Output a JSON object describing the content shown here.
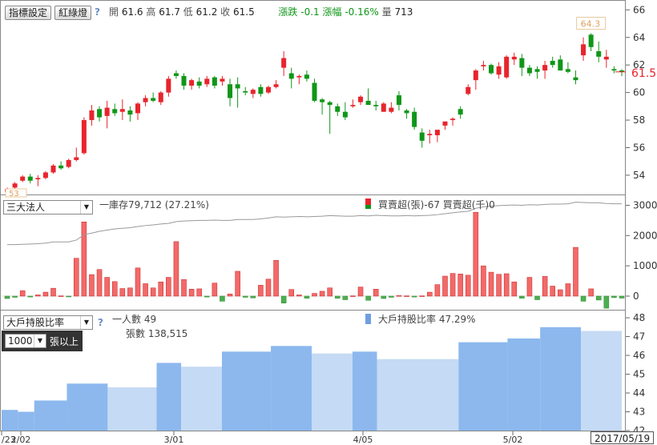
{
  "toolbar": {
    "indicator_btn": "指標設定",
    "redline_btn": "紅綠燈",
    "help": "?",
    "quote": {
      "open_label": "開",
      "open": "61.6",
      "high_label": "高",
      "high": "61.7",
      "low_label": "低",
      "low": "61.2",
      "close_label": "收",
      "close": "61.5",
      "change_label": "漲跌",
      "change": "-0.1",
      "pct_label": "漲幅",
      "pct": "-0.16%",
      "vol_label": "量",
      "vol": "713"
    }
  },
  "price_panel": {
    "y_ticks": [
      "66",
      "64",
      "62",
      "60",
      "58",
      "56",
      "54"
    ],
    "last_price_label": "61.5",
    "max_label": "64.3",
    "min_label": "53",
    "up_color": "#e8242c",
    "down_color": "#109618"
  },
  "inst_panel": {
    "select_value": "三大法人",
    "inventory_text": "一庫存79,712 (27.21%)",
    "buy_sell_text": "買賣超(張)-67 買賣超(千)0",
    "y_ticks": [
      "3000",
      "2000",
      "1000",
      "0"
    ]
  },
  "holder_panel": {
    "select_value": "大戶持股比率",
    "threshold_value": "1000",
    "threshold_unit": "張以上",
    "help": "?",
    "people_text": "一人數 49",
    "shares_text": "張數 138,515",
    "ratio_text": "大戶持股比率 47.29%",
    "y_ticks": [
      "48",
      "47",
      "46",
      "45",
      "44",
      "43",
      "42"
    ],
    "colors": {
      "dark": "#8cb8ee",
      "light": "#c5daf4"
    }
  },
  "x_axis": {
    "labels": [
      "/23",
      "2/02",
      "3/01",
      "4/05",
      "5/02"
    ],
    "current_date": "2017/05/19"
  },
  "chart_data": [
    {
      "type": "candlestick",
      "y_range": [
        52.6,
        66.6
      ],
      "ohlc": [
        [
          52.8,
          53.1,
          52.8,
          53.0
        ],
        [
          53.1,
          53.5,
          53.0,
          53.4
        ],
        [
          53.6,
          54.0,
          53.5,
          53.9
        ],
        [
          53.9,
          54.1,
          53.4,
          53.6
        ],
        [
          53.7,
          54.0,
          53.2,
          53.8
        ],
        [
          53.8,
          54.3,
          53.7,
          54.2
        ],
        [
          54.2,
          54.8,
          54.1,
          54.7
        ],
        [
          54.7,
          55.0,
          54.4,
          54.5
        ],
        [
          54.6,
          55.2,
          54.5,
          55.1
        ],
        [
          55.1,
          56.0,
          55.0,
          55.3
        ],
        [
          55.6,
          58.2,
          55.5,
          58.0
        ],
        [
          58.0,
          59.1,
          57.6,
          58.7
        ],
        [
          58.8,
          59.0,
          57.9,
          58.2
        ],
        [
          58.3,
          59.4,
          57.4,
          58.9
        ],
        [
          58.8,
          59.2,
          58.3,
          58.5
        ],
        [
          58.6,
          59.5,
          58.0,
          58.8
        ],
        [
          58.7,
          59.0,
          57.9,
          58.4
        ],
        [
          58.5,
          59.3,
          58.0,
          59.2
        ],
        [
          59.3,
          59.8,
          59.0,
          59.6
        ],
        [
          59.6,
          60.0,
          59.3,
          59.4
        ],
        [
          59.3,
          60.1,
          59.1,
          60.0
        ],
        [
          60.0,
          61.2,
          59.7,
          61.0
        ],
        [
          61.4,
          61.6,
          61.0,
          61.2
        ],
        [
          61.2,
          61.4,
          60.2,
          60.5
        ],
        [
          60.5,
          61.0,
          60.2,
          60.9
        ],
        [
          60.8,
          61.1,
          60.3,
          60.5
        ],
        [
          60.6,
          61.2,
          60.4,
          61.0
        ],
        [
          61.1,
          61.2,
          60.3,
          60.5
        ],
        [
          60.8,
          61.2,
          60.5,
          61.0
        ],
        [
          60.6,
          61.0,
          59.0,
          59.6
        ],
        [
          60.6,
          61.1,
          58.9,
          60.3
        ],
        [
          60.1,
          60.4,
          59.8,
          60.0
        ],
        [
          59.9,
          60.3,
          59.6,
          60.2
        ],
        [
          60.4,
          60.6,
          59.7,
          59.9
        ],
        [
          60.0,
          60.5,
          59.9,
          60.4
        ],
        [
          60.4,
          60.9,
          60.3,
          60.6
        ],
        [
          61.8,
          63.0,
          61.2,
          62.5
        ],
        [
          61.4,
          61.8,
          60.3,
          61.0
        ],
        [
          61.1,
          61.3,
          60.6,
          61.2
        ],
        [
          61.3,
          61.6,
          60.8,
          61.0
        ],
        [
          60.7,
          61.0,
          59.3,
          59.4
        ],
        [
          59.5,
          59.6,
          58.4,
          59.3
        ],
        [
          59.3,
          59.4,
          57.0,
          59.1
        ],
        [
          59.0,
          59.2,
          58.3,
          58.6
        ],
        [
          58.6,
          59.3,
          58.0,
          58.2
        ],
        [
          59.0,
          59.5,
          58.9,
          59.1
        ],
        [
          59.3,
          59.8,
          59.1,
          59.7
        ],
        [
          59.4,
          60.3,
          59.1,
          59.1
        ],
        [
          59.1,
          59.4,
          58.7,
          59.0
        ],
        [
          58.6,
          59.3,
          58.6,
          59.2
        ],
        [
          58.6,
          59.3,
          58.5,
          58.9
        ],
        [
          59.8,
          60.1,
          58.7,
          59.1
        ],
        [
          58.7,
          58.8,
          58.1,
          58.5
        ],
        [
          58.6,
          58.9,
          57.3,
          57.5
        ],
        [
          57.1,
          57.4,
          56.0,
          56.5
        ],
        [
          56.9,
          57.3,
          56.3,
          57.0
        ],
        [
          56.9,
          57.2,
          56.4,
          57.3
        ],
        [
          57.6,
          57.8,
          57.3,
          57.9
        ],
        [
          58.0,
          58.2,
          57.6,
          58.1
        ],
        [
          58.8,
          59.0,
          58.1,
          58.4
        ],
        [
          59.9,
          60.6,
          59.8,
          60.4
        ],
        [
          60.9,
          61.7,
          60.2,
          61.6
        ],
        [
          61.9,
          62.3,
          61.6,
          62.0
        ],
        [
          62.0,
          62.1,
          61.3,
          61.4
        ],
        [
          61.3,
          62.2,
          61.0,
          61.9
        ],
        [
          61.1,
          62.7,
          61.0,
          62.6
        ],
        [
          62.4,
          62.9,
          62.0,
          62.6
        ],
        [
          62.5,
          62.8,
          61.2,
          61.8
        ],
        [
          61.8,
          62.0,
          61.2,
          61.4
        ],
        [
          61.7,
          61.9,
          61.0,
          61.5
        ],
        [
          61.6,
          62.3,
          61.0,
          62.0
        ],
        [
          62.3,
          62.6,
          61.8,
          62.0
        ],
        [
          62.4,
          62.7,
          61.6,
          61.6
        ],
        [
          61.7,
          62.2,
          61.4,
          61.5
        ],
        [
          61.1,
          61.6,
          60.6,
          60.9
        ],
        [
          62.7,
          64.0,
          62.3,
          63.5
        ],
        [
          64.2,
          64.3,
          63.0,
          63.3
        ],
        [
          63.0,
          63.7,
          62.2,
          62.6
        ],
        [
          62.4,
          63.1,
          61.8,
          62.6
        ],
        [
          61.7,
          61.9,
          61.4,
          61.6
        ],
        [
          61.6,
          61.7,
          61.2,
          61.5
        ]
      ]
    },
    {
      "type": "bar",
      "series_label": "買賣超(張)",
      "y_range": [
        -450,
        3250
      ],
      "values": [
        -80,
        -40,
        180,
        -30,
        40,
        130,
        260,
        10,
        -20,
        1250,
        2450,
        710,
        880,
        620,
        480,
        250,
        270,
        930,
        410,
        270,
        470,
        620,
        1800,
        550,
        230,
        240,
        -30,
        430,
        -170,
        70,
        820,
        -40,
        -60,
        360,
        560,
        1180,
        -230,
        220,
        40,
        -70,
        90,
        160,
        270,
        -70,
        -120,
        10,
        300,
        -140,
        230,
        -80,
        -40,
        20,
        10,
        -30,
        10,
        130,
        380,
        660,
        750,
        730,
        690,
        2770,
        1000,
        790,
        720,
        740,
        470,
        -70,
        620,
        -120,
        650,
        330,
        210,
        410,
        1610,
        -170,
        240,
        -130,
        -400,
        -50,
        -67
      ],
      "inventory_line": [
        1700,
        1700,
        1710,
        1720,
        1730,
        1750,
        1790,
        1790,
        1790,
        1850,
        2030,
        2080,
        2140,
        2180,
        2220,
        2240,
        2260,
        2300,
        2330,
        2350,
        2380,
        2400,
        2460,
        2480,
        2490,
        2500,
        2500,
        2510,
        2500,
        2500,
        2530,
        2530,
        2530,
        2550,
        2580,
        2620,
        2610,
        2620,
        2630,
        2620,
        2630,
        2640,
        2660,
        2650,
        2640,
        2640,
        2660,
        2650,
        2670,
        2660,
        2650,
        2650,
        2660,
        2650,
        2660,
        2670,
        2690,
        2720,
        2750,
        2780,
        2800,
        2900,
        2950,
        2970,
        2990,
        3000,
        3010,
        3000,
        3020,
        3010,
        3030,
        3040,
        3040,
        3050,
        3100,
        3090,
        3080,
        3080,
        3060,
        3050,
        3050
      ]
    },
    {
      "type": "area",
      "series_label": "大戶持股比率",
      "y_range": [
        42,
        48.3
      ],
      "steps": [
        {
          "from": 0,
          "to": 2,
          "value": 43.1,
          "tone": "dark"
        },
        {
          "from": 2,
          "to": 4,
          "value": 43.0,
          "tone": "dark"
        },
        {
          "from": 4,
          "to": 8,
          "value": 43.6,
          "tone": "dark"
        },
        {
          "from": 8,
          "to": 13,
          "value": 44.5,
          "tone": "dark"
        },
        {
          "from": 13,
          "to": 19,
          "value": 44.3,
          "tone": "light"
        },
        {
          "from": 19,
          "to": 22,
          "value": 45.6,
          "tone": "dark"
        },
        {
          "from": 22,
          "to": 27,
          "value": 45.4,
          "tone": "light"
        },
        {
          "from": 27,
          "to": 33,
          "value": 46.2,
          "tone": "dark"
        },
        {
          "from": 33,
          "to": 38,
          "value": 46.5,
          "tone": "dark"
        },
        {
          "from": 38,
          "to": 43,
          "value": 46.1,
          "tone": "light"
        },
        {
          "from": 43,
          "to": 46,
          "value": 46.2,
          "tone": "dark"
        },
        {
          "from": 46,
          "to": 56,
          "value": 45.8,
          "tone": "light"
        },
        {
          "from": 56,
          "to": 62,
          "value": 46.7,
          "tone": "dark"
        },
        {
          "from": 62,
          "to": 66,
          "value": 46.9,
          "tone": "dark"
        },
        {
          "from": 66,
          "to": 71,
          "value": 47.5,
          "tone": "dark"
        },
        {
          "from": 71,
          "to": 76,
          "value": 47.3,
          "tone": "light"
        }
      ]
    }
  ]
}
